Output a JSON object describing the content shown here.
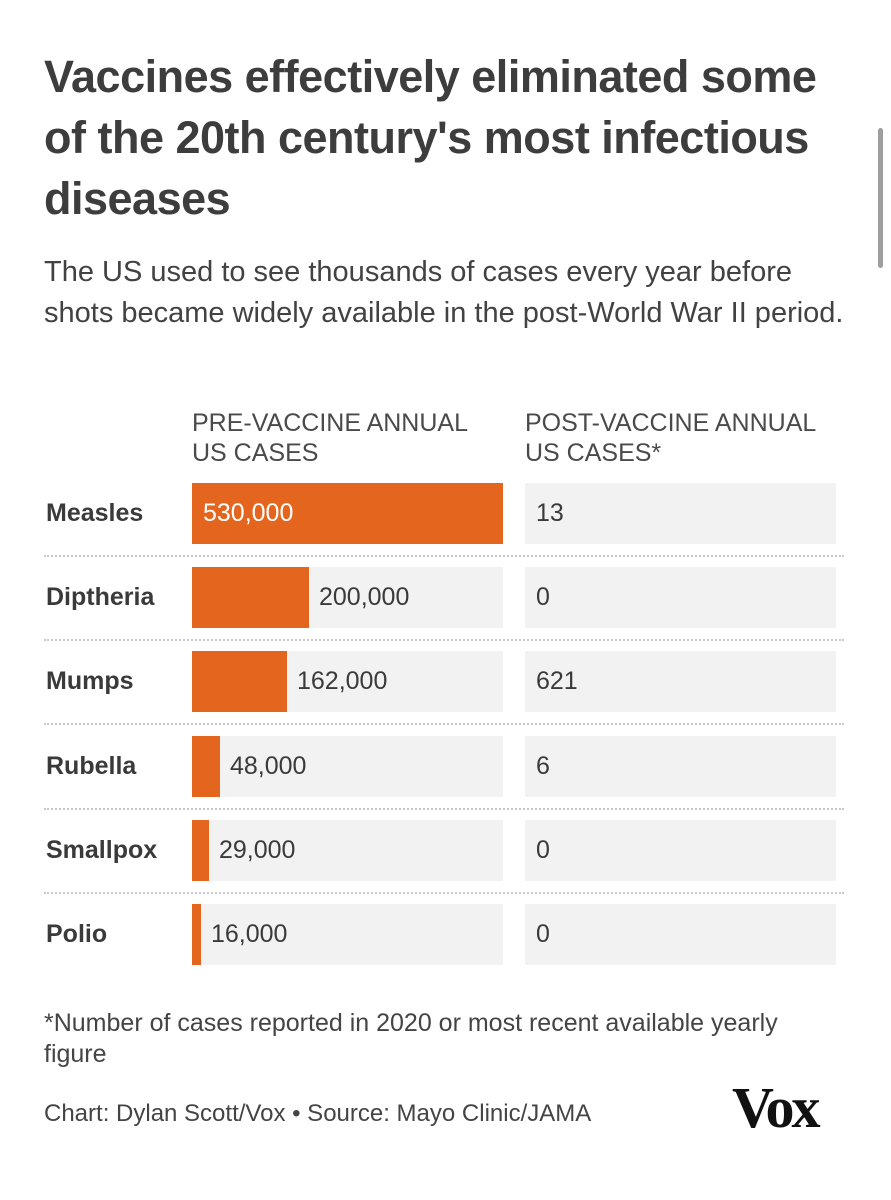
{
  "title": "Vaccines effectively eliminated some of the 20th century's most infectious diseases",
  "subtitle": "The US used to see thousands of cases every year before shots became widely available in the post-World War II period.",
  "headers": {
    "pre": "PRE-VACCINE ANNUAL US CASES",
    "post": "POST-VACCINE ANNUAL US CASES*"
  },
  "footnote": "*Number of cases reported in 2020 or most recent available yearly figure",
  "credit": "Chart: Dylan Scott/Vox • Source: Mayo Clinic/JAMA",
  "logo": "Vox",
  "colors": {
    "bar": "#e4661e",
    "track": "#f2f2f2"
  },
  "chart_data": {
    "type": "bar",
    "title": "Vaccines effectively eliminated some of the 20th century's most infectious diseases",
    "categories": [
      "Measles",
      "Diptheria",
      "Mumps",
      "Rubella",
      "Smallpox",
      "Polio"
    ],
    "series": [
      {
        "name": "PRE-VACCINE ANNUAL US CASES",
        "values": [
          530000,
          200000,
          162000,
          48000,
          29000,
          16000
        ],
        "labels": [
          "530,000",
          "200,000",
          "162,000",
          "48,000",
          "29,000",
          "16,000"
        ]
      },
      {
        "name": "POST-VACCINE ANNUAL US CASES*",
        "values": [
          13,
          0,
          621,
          6,
          0,
          0
        ],
        "labels": [
          "13",
          "0",
          "621",
          "6",
          "0",
          "0"
        ]
      }
    ],
    "xlim": [
      0,
      530000
    ]
  }
}
